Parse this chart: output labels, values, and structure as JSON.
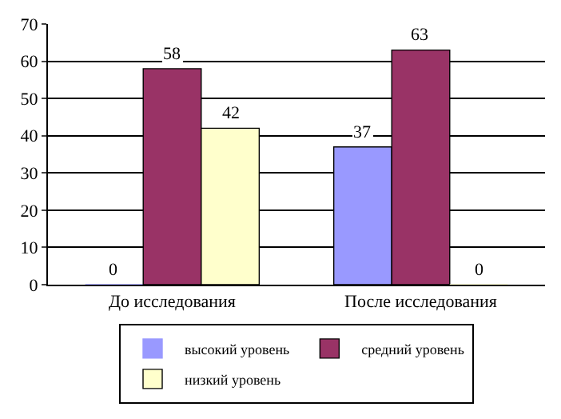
{
  "chart_data": {
    "type": "bar",
    "categories": [
      "До исследования",
      "После исследования"
    ],
    "series": [
      {
        "name": "высокий уровень",
        "color": "#9999ff",
        "values": [
          0,
          37
        ]
      },
      {
        "name": "средний уровень",
        "color": "#993366",
        "values": [
          58,
          63
        ]
      },
      {
        "name": "низкий уровень",
        "color": "#ffffcc",
        "values": [
          42,
          0
        ]
      }
    ],
    "ylim": [
      0,
      70
    ],
    "yticks": [
      0,
      10,
      20,
      30,
      40,
      50,
      60,
      70
    ],
    "grid": "y",
    "legend": "bottom",
    "data_labels": true
  }
}
